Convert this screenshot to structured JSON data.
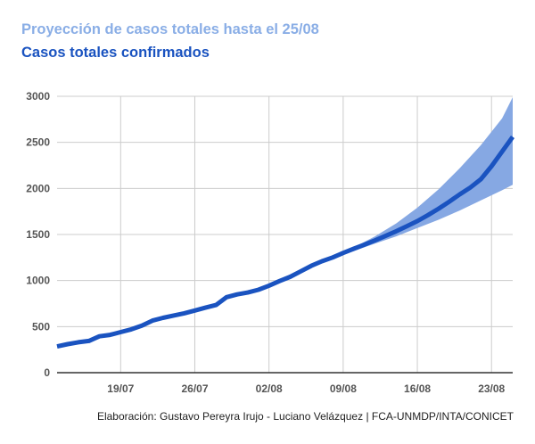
{
  "header": {
    "title": "Proyección de casos totales hasta el 25/08",
    "subtitle": "Casos totales confirmados"
  },
  "footer": {
    "caption": "Elaboración: Gustavo Pereyra Irujo - Luciano Velázquez | FCA-UNMDP/INTA/CONICET"
  },
  "colors": {
    "line": "#1a53c0",
    "band": "#86a8e3",
    "grid": "#cccccc",
    "axis": "#333333",
    "title": "#8aaee6",
    "subtitle": "#1a53c0"
  },
  "chart_data": {
    "type": "line",
    "title": "Proyección de casos totales hasta el 25/08",
    "subtitle": "Casos totales confirmados",
    "xlabel": "",
    "ylabel": "",
    "x_range": [
      "2020-07-13",
      "2020-08-25"
    ],
    "ylim": [
      0,
      3000
    ],
    "y_ticks": [
      0,
      500,
      1000,
      1500,
      2000,
      2500,
      3000
    ],
    "x_ticks": [
      {
        "date": "2020-07-19",
        "label": "19/07"
      },
      {
        "date": "2020-07-26",
        "label": "26/07"
      },
      {
        "date": "2020-08-02",
        "label": "02/08"
      },
      {
        "date": "2020-08-09",
        "label": "09/08"
      },
      {
        "date": "2020-08-16",
        "label": "16/08"
      },
      {
        "date": "2020-08-23",
        "label": "23/08"
      }
    ],
    "grid": true,
    "legend": "none",
    "series": [
      {
        "values": [
          [
            "2020-07-13",
            285
          ],
          [
            "2020-07-14",
            310
          ],
          [
            "2020-07-15",
            330
          ],
          [
            "2020-07-16",
            345
          ],
          [
            "2020-07-17",
            395
          ],
          [
            "2020-07-18",
            410
          ],
          [
            "2020-07-19",
            440
          ],
          [
            "2020-07-20",
            470
          ],
          [
            "2020-07-21",
            510
          ],
          [
            "2020-07-22",
            565
          ],
          [
            "2020-07-23",
            595
          ],
          [
            "2020-07-24",
            620
          ],
          [
            "2020-07-25",
            645
          ],
          [
            "2020-07-26",
            675
          ],
          [
            "2020-07-27",
            705
          ],
          [
            "2020-07-28",
            735
          ],
          [
            "2020-07-29",
            820
          ],
          [
            "2020-07-30",
            850
          ],
          [
            "2020-07-31",
            870
          ],
          [
            "2020-08-01",
            900
          ],
          [
            "2020-08-02",
            945
          ],
          [
            "2020-08-03",
            995
          ],
          [
            "2020-08-04",
            1040
          ],
          [
            "2020-08-05",
            1100
          ],
          [
            "2020-08-06",
            1160
          ],
          [
            "2020-08-07",
            1210
          ],
          [
            "2020-08-08",
            1250
          ],
          [
            "2020-08-09",
            1300
          ],
          [
            "2020-08-10",
            1345
          ],
          [
            "2020-08-11",
            1390
          ],
          [
            "2020-08-12",
            1435
          ],
          [
            "2020-08-13",
            1485
          ],
          [
            "2020-08-14",
            1535
          ],
          [
            "2020-08-15",
            1590
          ],
          [
            "2020-08-16",
            1645
          ],
          [
            "2020-08-17",
            1710
          ],
          [
            "2020-08-18",
            1780
          ],
          [
            "2020-08-19",
            1855
          ],
          [
            "2020-08-20",
            1935
          ],
          [
            "2020-08-21",
            2010
          ],
          [
            "2020-08-22",
            2100
          ],
          [
            "2020-08-23",
            2240
          ],
          [
            "2020-08-24",
            2400
          ],
          [
            "2020-08-25",
            2560
          ]
        ]
      }
    ],
    "band": {
      "upper": [
        [
          "2020-08-08",
          1250
        ],
        [
          "2020-08-10",
          1360
        ],
        [
          "2020-08-12",
          1480
        ],
        [
          "2020-08-14",
          1620
        ],
        [
          "2020-08-16",
          1790
        ],
        [
          "2020-08-18",
          1990
        ],
        [
          "2020-08-20",
          2220
        ],
        [
          "2020-08-22",
          2470
        ],
        [
          "2020-08-24",
          2760
        ],
        [
          "2020-08-25",
          2990
        ]
      ],
      "lower": [
        [
          "2020-08-08",
          1250
        ],
        [
          "2020-08-10",
          1320
        ],
        [
          "2020-08-12",
          1400
        ],
        [
          "2020-08-14",
          1480
        ],
        [
          "2020-08-16",
          1570
        ],
        [
          "2020-08-18",
          1660
        ],
        [
          "2020-08-20",
          1760
        ],
        [
          "2020-08-22",
          1870
        ],
        [
          "2020-08-24",
          1980
        ],
        [
          "2020-08-25",
          2040
        ]
      ]
    }
  }
}
